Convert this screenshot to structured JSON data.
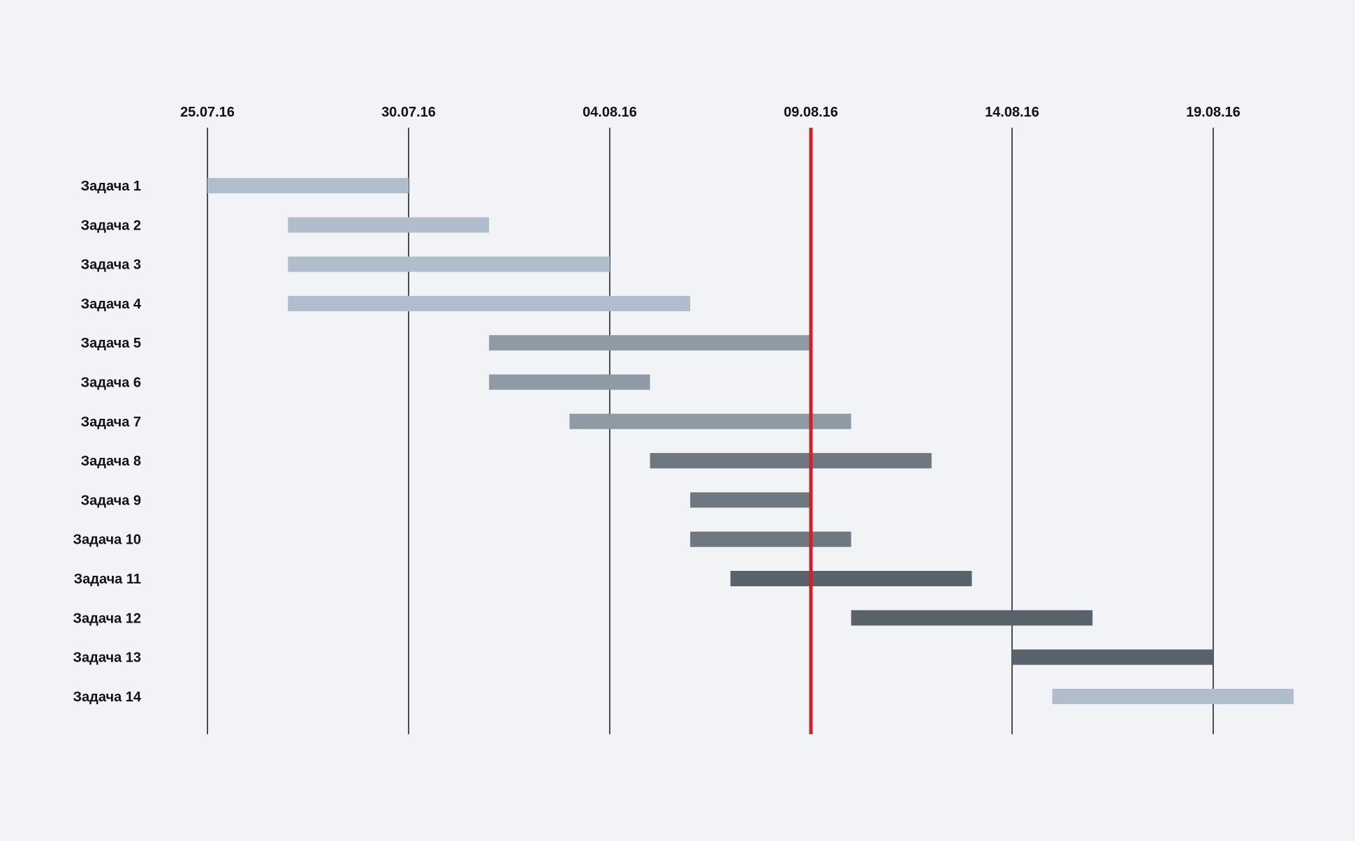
{
  "chart_data": {
    "type": "gantt",
    "title": "",
    "xlabel": "",
    "ylabel": "",
    "x_ticks": [
      "25.07.16",
      "30.07.16",
      "04.08.16",
      "09.08.16",
      "14.08.16",
      "19.08.16"
    ],
    "x_range": [
      "2016-07-25",
      "2016-08-21"
    ],
    "today_marker": "09.08.16",
    "grid": "vertical",
    "tasks": [
      {
        "name": "Задача 1",
        "start": "2016-07-25",
        "end": "2016-07-30",
        "group": 1
      },
      {
        "name": "Задача 2",
        "start": "2016-07-27",
        "end": "2016-08-01",
        "group": 1
      },
      {
        "name": "Задача 3",
        "start": "2016-07-27",
        "end": "2016-08-04",
        "group": 1
      },
      {
        "name": "Задача 4",
        "start": "2016-07-27",
        "end": "2016-08-06",
        "group": 1
      },
      {
        "name": "Задача 5",
        "start": "2016-08-01",
        "end": "2016-08-09",
        "group": 2
      },
      {
        "name": "Задача 6",
        "start": "2016-08-01",
        "end": "2016-08-05",
        "group": 2
      },
      {
        "name": "Задача 7",
        "start": "2016-08-03",
        "end": "2016-08-10",
        "group": 2
      },
      {
        "name": "Задача 8",
        "start": "2016-08-05",
        "end": "2016-08-12",
        "group": 3
      },
      {
        "name": "Задача 9",
        "start": "2016-08-06",
        "end": "2016-08-09",
        "group": 3
      },
      {
        "name": "Задача 10",
        "start": "2016-08-06",
        "end": "2016-08-10",
        "group": 3
      },
      {
        "name": "Задача 11",
        "start": "2016-08-07",
        "end": "2016-08-13",
        "group": 4
      },
      {
        "name": "Задача 12",
        "start": "2016-08-10",
        "end": "2016-08-16",
        "group": 4
      },
      {
        "name": "Задача 13",
        "start": "2016-08-14",
        "end": "2016-08-19",
        "group": 4
      },
      {
        "name": "Задача 14",
        "start": "2016-08-15",
        "end": "2016-08-21",
        "group": 1
      }
    ]
  },
  "colors": {
    "background": "#f2f3f7",
    "gridline": "#222222",
    "today_line": "#d0202a",
    "label_text": "#111111",
    "group_1": "#b0bdcc",
    "group_2": "#8f9aa5",
    "group_3": "#6f7780",
    "group_4": "#59616a"
  }
}
